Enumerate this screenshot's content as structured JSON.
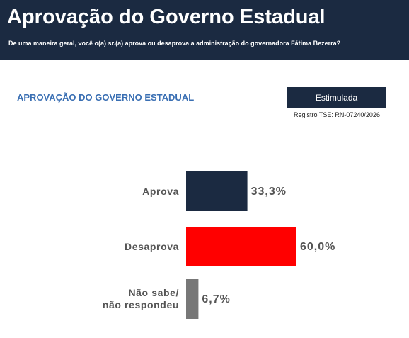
{
  "chart_data": {
    "type": "bar",
    "orientation": "horizontal",
    "title": "Aprovação do Governo Estadual",
    "subtitle": "De uma maneira geral, você o(a) sr.(a) aprova ou desaprova a administração do governadora Fátima Bezerra?",
    "section_title": "APROVAÇÃO DO GOVERNO ESTADUAL",
    "badge": "Estimulada",
    "note": "Registro TSE: RN-07240/2026",
    "categories": [
      "Aprova",
      "Desaprova",
      "Não sabe/\nnão respondeu"
    ],
    "values": [
      33.3,
      60.0,
      6.7
    ],
    "value_labels": [
      "33,3%",
      "60,0%",
      "6,7%"
    ],
    "colors": [
      "#1b2a41",
      "#ff0000",
      "#777777"
    ]
  }
}
